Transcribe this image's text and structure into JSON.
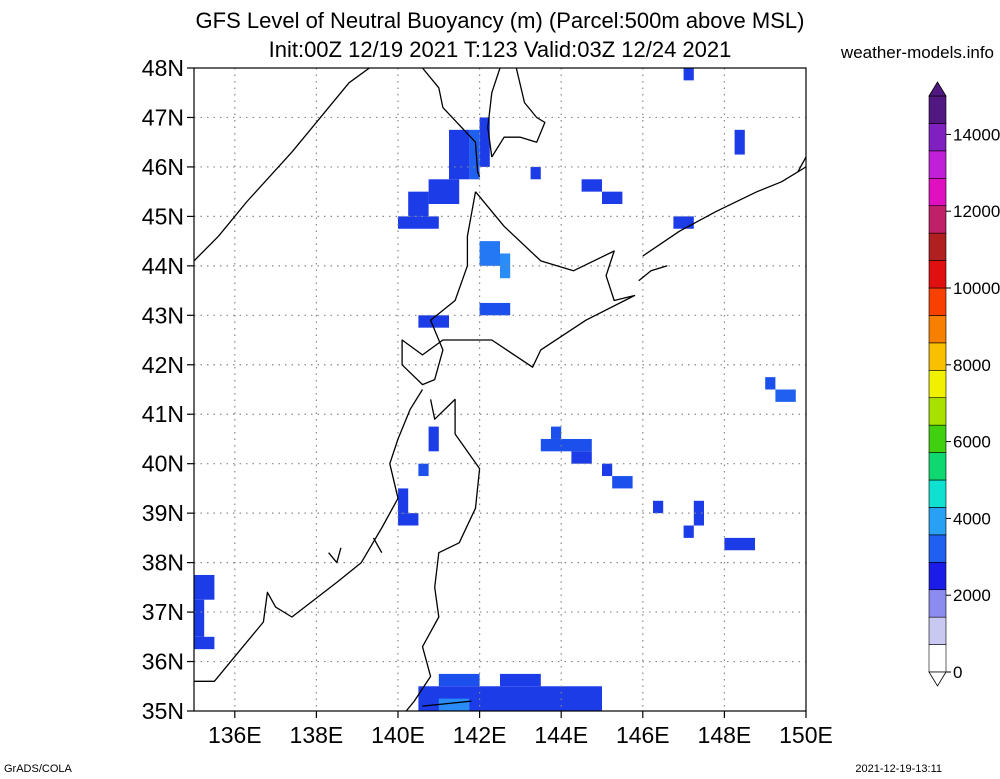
{
  "header": {
    "title_line1": "GFS Level of Neutral Buoyancy (m) (Parcel:500m above MSL)",
    "title_line2": "Init:00Z 12/19 2021 T:123 Valid:03Z 12/24 2021",
    "site": "weather-models.info"
  },
  "footer": {
    "credit": "GrADS/COLA",
    "timestamp": "2021-12-19-13:11"
  },
  "map": {
    "lon_range": [
      135,
      150
    ],
    "lat_range": [
      35,
      48
    ],
    "lon_ticks": [
      {
        "v": 136,
        "label": "136E"
      },
      {
        "v": 138,
        "label": "138E"
      },
      {
        "v": 140,
        "label": "140E"
      },
      {
        "v": 142,
        "label": "142E"
      },
      {
        "v": 144,
        "label": "144E"
      },
      {
        "v": 146,
        "label": "146E"
      },
      {
        "v": 148,
        "label": "148E"
      },
      {
        "v": 150,
        "label": "150E"
      }
    ],
    "lat_ticks": [
      {
        "v": 35,
        "label": "35N"
      },
      {
        "v": 36,
        "label": "36N"
      },
      {
        "v": 37,
        "label": "37N"
      },
      {
        "v": 38,
        "label": "38N"
      },
      {
        "v": 39,
        "label": "39N"
      },
      {
        "v": 40,
        "label": "40N"
      },
      {
        "v": 41,
        "label": "41N"
      },
      {
        "v": 42,
        "label": "42N"
      },
      {
        "v": 43,
        "label": "43N"
      },
      {
        "v": 44,
        "label": "44N"
      },
      {
        "v": 45,
        "label": "45N"
      },
      {
        "v": 46,
        "label": "46N"
      },
      {
        "v": 47,
        "label": "47N"
      },
      {
        "v": 48,
        "label": "48N"
      }
    ],
    "grid": "dotted",
    "cells": [
      {
        "lon": [
          147.0,
          147.25
        ],
        "lat": [
          47.75,
          48.0
        ],
        "color": "#1c3ce8"
      },
      {
        "lon": [
          142.0,
          142.25
        ],
        "lat": [
          46.0,
          47.0
        ],
        "color": "#1c3ce8"
      },
      {
        "lon": [
          141.75,
          142.0
        ],
        "lat": [
          45.75,
          46.75
        ],
        "color": "#2060f0"
      },
      {
        "lon": [
          141.25,
          141.75
        ],
        "lat": [
          45.75,
          46.75
        ],
        "color": "#1c3ce8"
      },
      {
        "lon": [
          140.75,
          141.5
        ],
        "lat": [
          45.25,
          45.75
        ],
        "color": "#1c3ce8"
      },
      {
        "lon": [
          140.25,
          140.75
        ],
        "lat": [
          45.0,
          45.5
        ],
        "color": "#1c3ce8"
      },
      {
        "lon": [
          140.0,
          141.0
        ],
        "lat": [
          44.75,
          45.0
        ],
        "color": "#1c3ce8"
      },
      {
        "lon": [
          148.25,
          148.5
        ],
        "lat": [
          46.25,
          46.75
        ],
        "color": "#1c3ce8"
      },
      {
        "lon": [
          143.25,
          143.5
        ],
        "lat": [
          45.75,
          46.0
        ],
        "color": "#1c3ce8"
      },
      {
        "lon": [
          144.5,
          145.0
        ],
        "lat": [
          45.5,
          45.75
        ],
        "color": "#1c3ce8"
      },
      {
        "lon": [
          145.0,
          145.5
        ],
        "lat": [
          45.25,
          45.5
        ],
        "color": "#1c3ce8"
      },
      {
        "lon": [
          146.75,
          147.25
        ],
        "lat": [
          44.75,
          45.0
        ],
        "color": "#1c3ce8"
      },
      {
        "lon": [
          142.0,
          142.5
        ],
        "lat": [
          44.0,
          44.5
        ],
        "color": "#2478f4"
      },
      {
        "lon": [
          142.5,
          142.75
        ],
        "lat": [
          43.75,
          44.25
        ],
        "color": "#2a8cf6"
      },
      {
        "lon": [
          142.0,
          142.75
        ],
        "lat": [
          43.0,
          43.25
        ],
        "color": "#1c50ec"
      },
      {
        "lon": [
          140.5,
          141.25
        ],
        "lat": [
          42.75,
          43.0
        ],
        "color": "#1c3ce8"
      },
      {
        "lon": [
          149.0,
          149.25
        ],
        "lat": [
          41.5,
          41.75
        ],
        "color": "#1c50ec"
      },
      {
        "lon": [
          149.25,
          149.75
        ],
        "lat": [
          41.25,
          41.5
        ],
        "color": "#2060f0"
      },
      {
        "lon": [
          143.75,
          144.0
        ],
        "lat": [
          40.5,
          40.75
        ],
        "color": "#1c50ec"
      },
      {
        "lon": [
          143.5,
          144.75
        ],
        "lat": [
          40.25,
          40.5
        ],
        "color": "#1c50ec"
      },
      {
        "lon": [
          144.25,
          144.75
        ],
        "lat": [
          40.0,
          40.25
        ],
        "color": "#1c3ce8"
      },
      {
        "lon": [
          140.75,
          141.0
        ],
        "lat": [
          40.25,
          40.75
        ],
        "color": "#1c3ce8"
      },
      {
        "lon": [
          140.5,
          140.75
        ],
        "lat": [
          39.75,
          40.0
        ],
        "color": "#1c50ec"
      },
      {
        "lon": [
          145.0,
          145.25
        ],
        "lat": [
          39.75,
          40.0
        ],
        "color": "#1c3ce8"
      },
      {
        "lon": [
          145.25,
          145.75
        ],
        "lat": [
          39.5,
          39.75
        ],
        "color": "#1c50ec"
      },
      {
        "lon": [
          140.0,
          140.25
        ],
        "lat": [
          39.0,
          39.5
        ],
        "color": "#1c3ce8"
      },
      {
        "lon": [
          140.0,
          140.5
        ],
        "lat": [
          38.75,
          39.0
        ],
        "color": "#1c3ce8"
      },
      {
        "lon": [
          146.25,
          146.5
        ],
        "lat": [
          39.0,
          39.25
        ],
        "color": "#1c3ce8"
      },
      {
        "lon": [
          147.25,
          147.5
        ],
        "lat": [
          38.75,
          39.25
        ],
        "color": "#1c3ce8"
      },
      {
        "lon": [
          147.0,
          147.25
        ],
        "lat": [
          38.5,
          38.75
        ],
        "color": "#1c3ce8"
      },
      {
        "lon": [
          148.0,
          148.75
        ],
        "lat": [
          38.25,
          38.5
        ],
        "color": "#1c3ce8"
      },
      {
        "lon": [
          135.0,
          135.5
        ],
        "lat": [
          37.25,
          37.75
        ],
        "color": "#1c3ce8"
      },
      {
        "lon": [
          135.0,
          135.25
        ],
        "lat": [
          36.5,
          37.25
        ],
        "color": "#1c3ce8"
      },
      {
        "lon": [
          135.0,
          135.5
        ],
        "lat": [
          36.25,
          36.5
        ],
        "color": "#1c3ce8"
      },
      {
        "lon": [
          141.0,
          142.0
        ],
        "lat": [
          35.5,
          35.75
        ],
        "color": "#1c50ec"
      },
      {
        "lon": [
          142.5,
          143.5
        ],
        "lat": [
          35.5,
          35.75
        ],
        "color": "#1c3ce8"
      },
      {
        "lon": [
          140.5,
          145.0
        ],
        "lat": [
          35.0,
          35.5
        ],
        "color": "#1c3ce8"
      },
      {
        "lon": [
          141.0,
          141.75
        ],
        "lat": [
          35.0,
          35.25
        ],
        "color": "#2a8cf6"
      }
    ],
    "coastlines": [
      [
        [
          135.0,
          44.1
        ],
        [
          135.6,
          44.6
        ],
        [
          136.3,
          45.3
        ],
        [
          137.4,
          46.3
        ],
        [
          138.3,
          47.2
        ],
        [
          138.8,
          47.7
        ],
        [
          139.3,
          48.0
        ]
      ],
      [
        [
          140.6,
          48.0
        ],
        [
          141.0,
          47.6
        ],
        [
          141.1,
          47.2
        ],
        [
          141.9,
          46.5
        ],
        [
          141.95,
          45.9
        ],
        [
          142.0,
          45.8
        ]
      ],
      [
        [
          142.3,
          46.2
        ],
        [
          142.2,
          46.8
        ],
        [
          142.3,
          47.5
        ],
        [
          142.5,
          48.0
        ]
      ],
      [
        [
          142.9,
          48.0
        ],
        [
          143.1,
          47.3
        ],
        [
          143.4,
          47.0
        ],
        [
          143.6,
          46.9
        ],
        [
          143.4,
          46.5
        ],
        [
          143.0,
          46.6
        ],
        [
          142.6,
          46.6
        ],
        [
          142.3,
          46.2
        ]
      ],
      [
        [
          141.9,
          45.5
        ],
        [
          142.6,
          44.8
        ],
        [
          143.5,
          44.1
        ],
        [
          144.3,
          43.9
        ],
        [
          145.3,
          44.3
        ],
        [
          145.1,
          43.8
        ],
        [
          145.3,
          43.3
        ],
        [
          145.8,
          43.4
        ],
        [
          144.6,
          42.9
        ],
        [
          143.5,
          42.3
        ],
        [
          143.3,
          41.95
        ],
        [
          142.3,
          42.5
        ],
        [
          141.1,
          42.5
        ],
        [
          140.6,
          42.2
        ],
        [
          140.1,
          42.5
        ],
        [
          140.1,
          42.0
        ],
        [
          140.6,
          41.6
        ],
        [
          140.9,
          41.7
        ],
        [
          141.1,
          42.3
        ],
        [
          140.8,
          42.9
        ],
        [
          141.4,
          43.3
        ],
        [
          141.7,
          44.0
        ],
        [
          141.7,
          44.6
        ],
        [
          141.9,
          45.5
        ]
      ],
      [
        [
          140.6,
          41.5
        ],
        [
          140.3,
          41.1
        ],
        [
          140.0,
          40.5
        ],
        [
          139.8,
          40.0
        ],
        [
          140.0,
          39.3
        ],
        [
          139.6,
          38.7
        ],
        [
          139.1,
          38.0
        ],
        [
          138.5,
          37.6
        ],
        [
          137.4,
          36.9
        ],
        [
          137.0,
          37.1
        ],
        [
          136.8,
          37.4
        ],
        [
          136.7,
          36.8
        ],
        [
          136.1,
          36.2
        ],
        [
          135.5,
          35.6
        ],
        [
          135.0,
          35.6
        ]
      ],
      [
        [
          140.8,
          41.3
        ],
        [
          140.9,
          40.9
        ],
        [
          141.4,
          41.3
        ],
        [
          141.4,
          40.6
        ],
        [
          142.0,
          39.9
        ],
        [
          141.9,
          39.1
        ],
        [
          141.5,
          38.4
        ],
        [
          141.0,
          38.2
        ],
        [
          140.9,
          37.5
        ],
        [
          141.0,
          36.9
        ],
        [
          140.6,
          36.3
        ],
        [
          140.8,
          35.7
        ],
        [
          140.4,
          35.2
        ],
        [
          140.2,
          35.0
        ]
      ],
      [
        [
          146.0,
          44.2
        ],
        [
          146.9,
          44.7
        ],
        [
          147.8,
          45.1
        ],
        [
          148.8,
          45.5
        ],
        [
          149.4,
          45.7
        ],
        [
          150.0,
          46.0
        ]
      ],
      [
        [
          145.9,
          43.7
        ],
        [
          146.2,
          43.9
        ],
        [
          146.6,
          44.0
        ]
      ],
      [
        [
          149.8,
          45.9
        ],
        [
          150.0,
          46.2
        ]
      ],
      [
        [
          138.3,
          38.2
        ],
        [
          138.5,
          38.0
        ],
        [
          138.6,
          38.3
        ]
      ],
      [
        [
          139.4,
          38.5
        ],
        [
          139.6,
          38.2
        ]
      ],
      [
        [
          141.8,
          35.2
        ],
        [
          140.6,
          35.1
        ]
      ]
    ]
  },
  "colorbar": {
    "ticks": [
      {
        "v": 0,
        "label": "0"
      },
      {
        "v": 2000,
        "label": "2000"
      },
      {
        "v": 4000,
        "label": "4000"
      },
      {
        "v": 6000,
        "label": "6000"
      },
      {
        "v": 8000,
        "label": "8000"
      },
      {
        "v": 10000,
        "label": "10000"
      },
      {
        "v": 12000,
        "label": "12000"
      },
      {
        "v": 14000,
        "label": "14000"
      }
    ],
    "range": [
      0,
      15000
    ],
    "stops": [
      "#ffffff",
      "#c8c8f0",
      "#8c8cf0",
      "#1c1ce8",
      "#2060f0",
      "#28a0f4",
      "#10e0d0",
      "#10d870",
      "#40d010",
      "#a8e000",
      "#f0f000",
      "#f8c000",
      "#f88000",
      "#f84000",
      "#e01010",
      "#b02020",
      "#c02068",
      "#e010c0",
      "#c020d8",
      "#8020c0",
      "#501880"
    ]
  }
}
